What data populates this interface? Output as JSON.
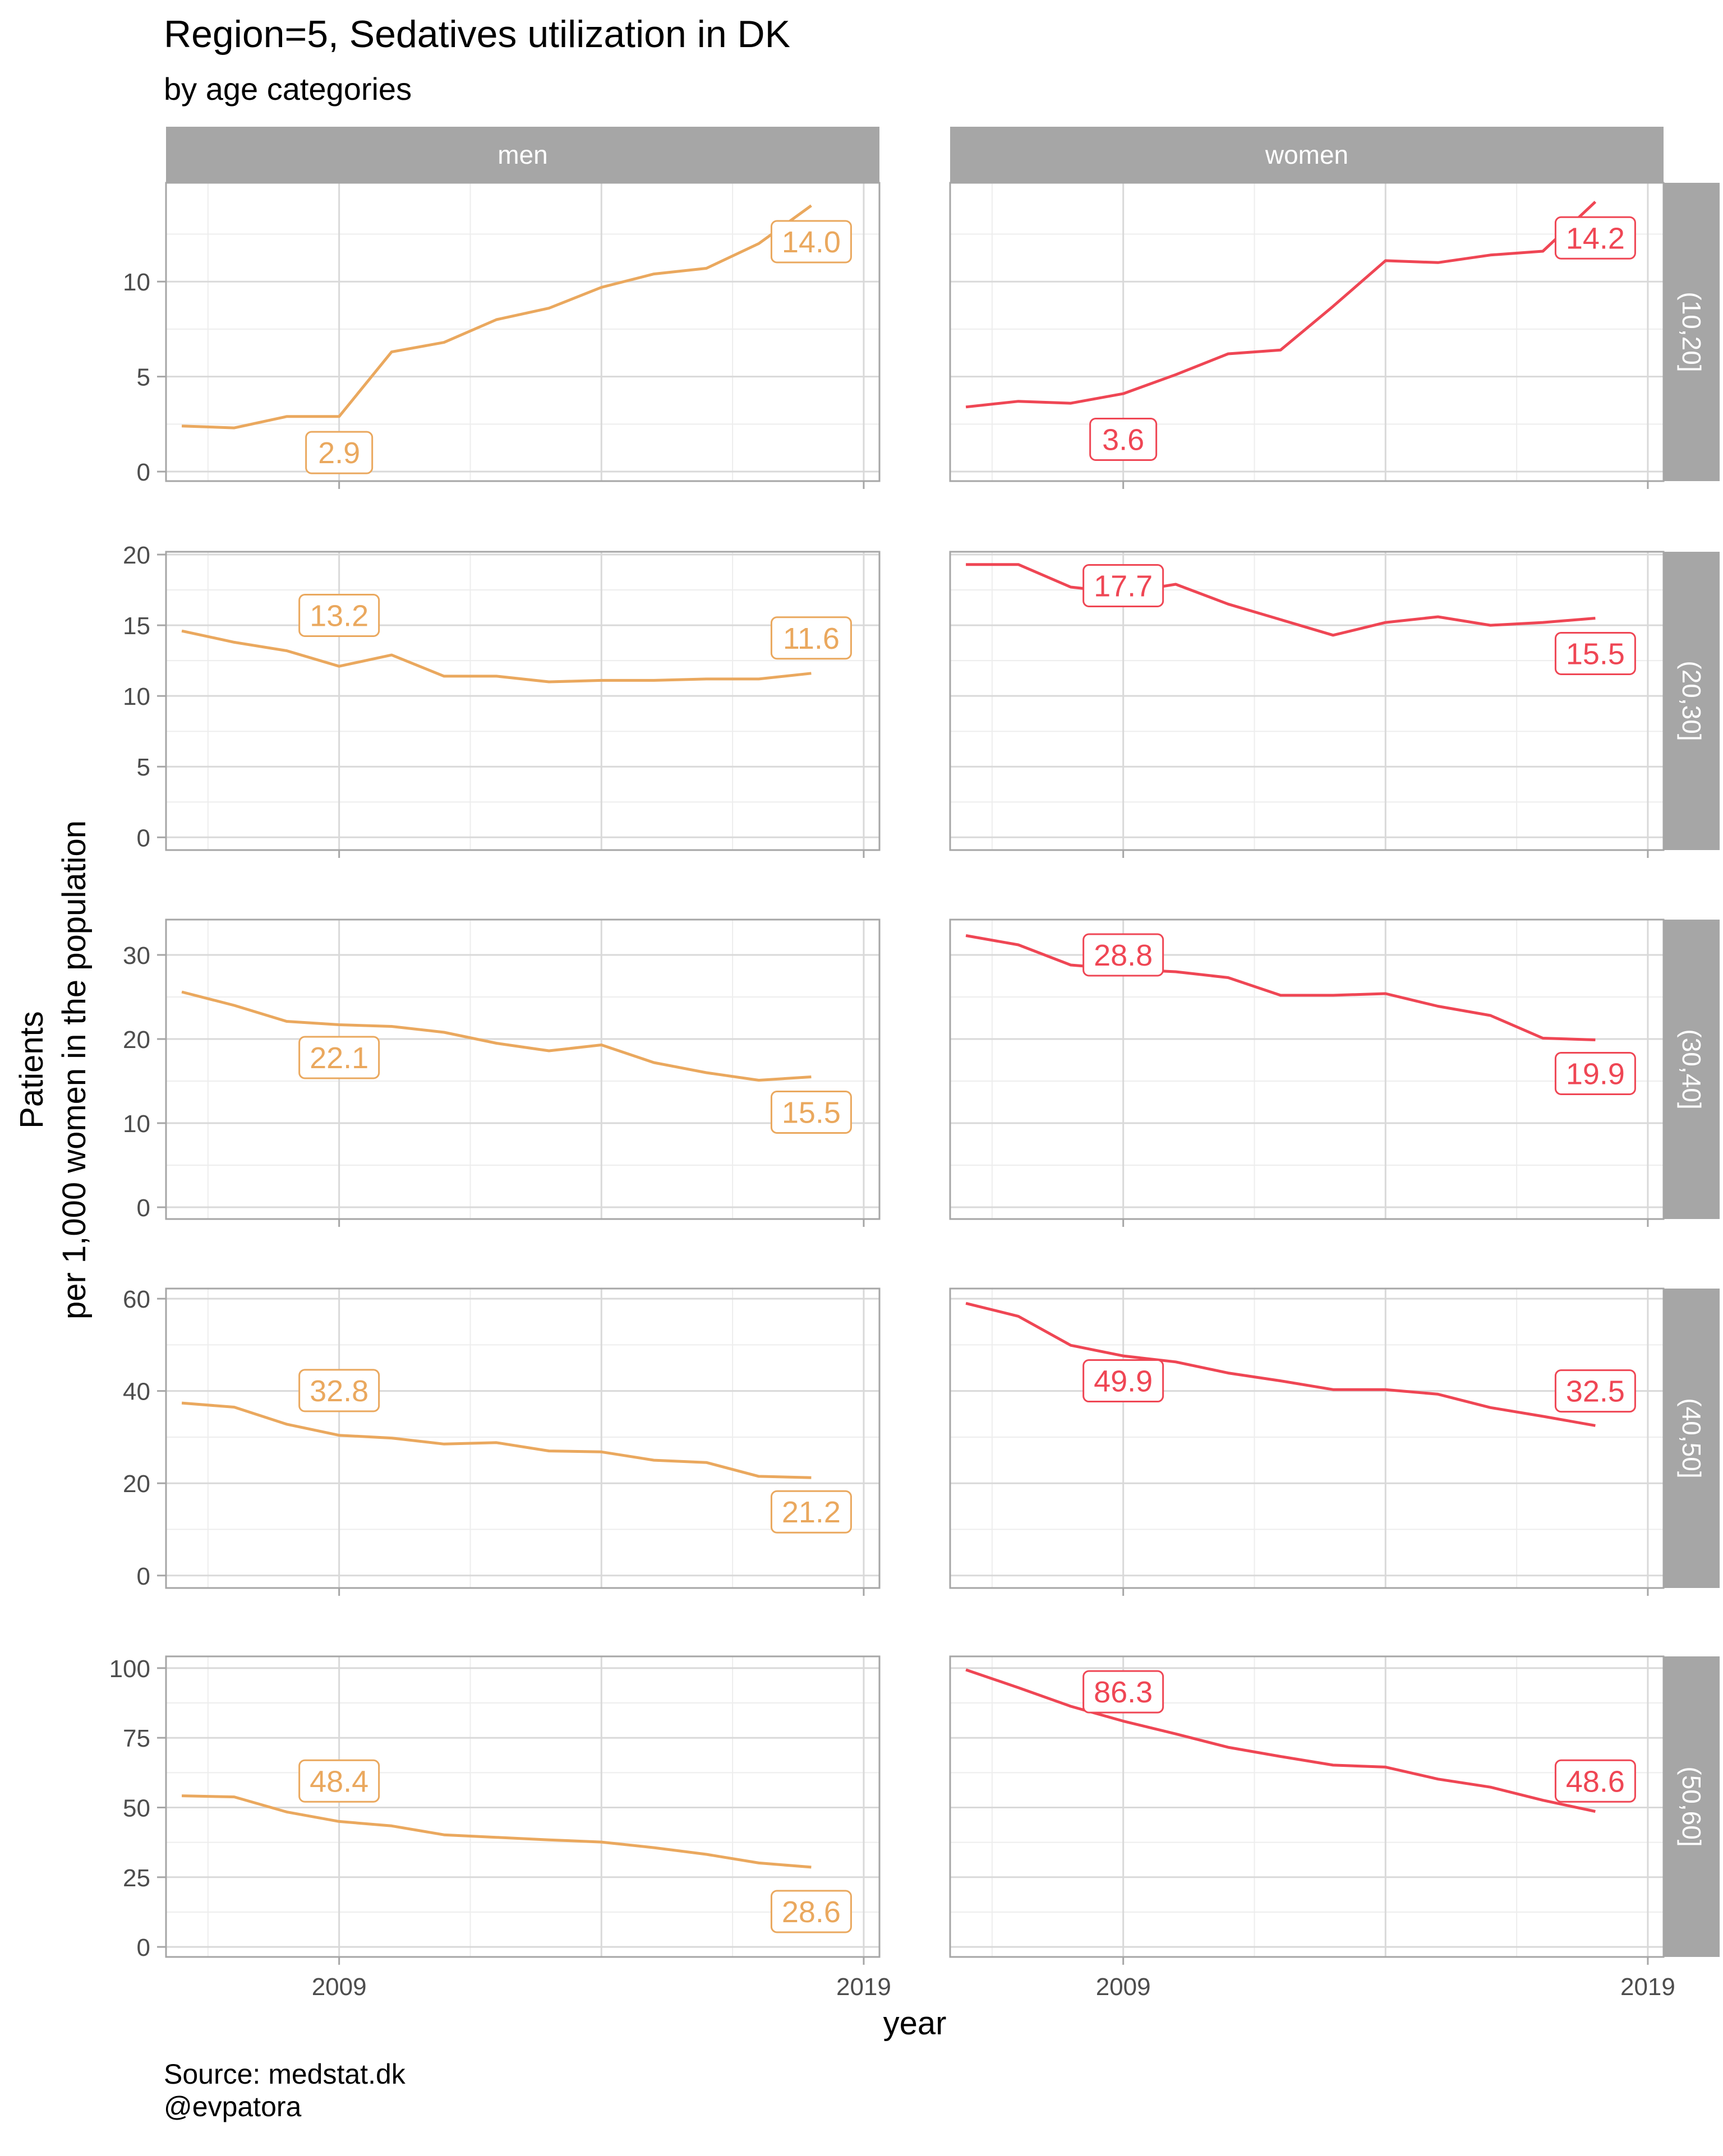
{
  "title": "Region=5, Sedatives utilization in DK",
  "subtitle": "by age categories",
  "caption_lines": [
    "Source: medstat.dk",
    "@evpatora"
  ],
  "colors": {
    "men": "#EAA85E",
    "women": "#EF4654",
    "strip_bg": "#A6A6A6",
    "strip_text": "#FFFFFF",
    "grid_major": "#D9D9D9",
    "grid_minor": "#EDEDED",
    "panel_border": "#A6A6A6",
    "text": "#000000",
    "tick_text": "#4D4D4D"
  },
  "chart_data": {
    "type": "line",
    "title": "Region=5, Sedatives utilization in DK",
    "subtitle": "by age categories",
    "xlabel": "year",
    "ylabel_lines": [
      "Patients",
      "per 1,000 women in the population"
    ],
    "x": [
      2006,
      2007,
      2008,
      2009,
      2010,
      2011,
      2012,
      2013,
      2014,
      2015,
      2016,
      2017,
      2018,
      2019
    ],
    "xlim": [
      2005.7,
      2019.3
    ],
    "x_ticks": [
      2009,
      2019
    ],
    "x_tick_labels": [
      "2009",
      "2019"
    ],
    "columns": [
      "men",
      "women"
    ],
    "rows": [
      "(10,20]",
      "(20,30]",
      "(30,40]",
      "(40,50]",
      "(50,60]"
    ],
    "grid": true,
    "legend": "none",
    "panels": [
      {
        "row_label": "(10,20]",
        "ylim": [
          -0.5,
          15.2
        ],
        "y_ticks": [
          0,
          5,
          10
        ],
        "y_tick_labels": [
          "0",
          "5",
          "10"
        ],
        "series": [
          {
            "name": "men",
            "values": [
              2.4,
              2.3,
              2.9,
              2.9,
              6.3,
              6.8,
              8.0,
              8.6,
              9.7,
              10.4,
              10.7,
              12.0,
              14.0,
              null
            ],
            "labels": [
              {
                "x": 2009,
                "y": 1.0,
                "text": "2.9"
              },
              {
                "x": 2018,
                "y": 12.1,
                "text": "14.0"
              }
            ]
          },
          {
            "name": "women",
            "values": [
              3.4,
              3.7,
              3.6,
              4.1,
              5.1,
              6.2,
              6.4,
              8.7,
              11.1,
              11.0,
              11.4,
              11.6,
              14.2,
              null
            ],
            "labels": [
              {
                "x": 2009,
                "y": 1.7,
                "text": "3.6"
              },
              {
                "x": 2018,
                "y": 12.3,
                "text": "14.2"
              }
            ]
          }
        ]
      },
      {
        "row_label": "(20,30]",
        "ylim": [
          -0.9,
          20.2
        ],
        "y_ticks": [
          0,
          5,
          10,
          15,
          20
        ],
        "y_tick_labels": [
          "0",
          "5",
          "10",
          "15",
          "20"
        ],
        "series": [
          {
            "name": "men",
            "values": [
              14.6,
              13.8,
              13.2,
              12.1,
              12.9,
              11.4,
              11.4,
              11.0,
              11.1,
              11.1,
              11.2,
              11.2,
              11.6,
              null
            ],
            "labels": [
              {
                "x": 2009,
                "y": 15.7,
                "text": "13.2"
              },
              {
                "x": 2018,
                "y": 14.1,
                "text": "11.6"
              }
            ]
          },
          {
            "name": "women",
            "values": [
              19.3,
              19.3,
              17.7,
              17.3,
              17.9,
              16.5,
              15.4,
              14.3,
              15.2,
              15.6,
              15.0,
              15.2,
              15.5,
              null
            ],
            "labels": [
              {
                "x": 2009,
                "y": 17.8,
                "text": "17.7"
              },
              {
                "x": 2018,
                "y": 13.0,
                "text": "15.5"
              }
            ]
          }
        ]
      },
      {
        "row_label": "(30,40]",
        "ylim": [
          -1.4,
          34.2
        ],
        "y_ticks": [
          0,
          10,
          20,
          30
        ],
        "y_tick_labels": [
          "0",
          "10",
          "20",
          "30"
        ],
        "series": [
          {
            "name": "men",
            "values": [
              25.6,
              24.0,
              22.1,
              21.7,
              21.5,
              20.8,
              19.5,
              18.6,
              19.3,
              17.2,
              16.0,
              15.1,
              15.5,
              null
            ],
            "labels": [
              {
                "x": 2009,
                "y": 17.8,
                "text": "22.1"
              },
              {
                "x": 2018,
                "y": 11.3,
                "text": "15.5"
              }
            ]
          },
          {
            "name": "women",
            "values": [
              32.3,
              31.2,
              28.8,
              28.3,
              28.0,
              27.3,
              25.2,
              25.2,
              25.4,
              23.9,
              22.8,
              20.1,
              19.9,
              null
            ],
            "labels": [
              {
                "x": 2009,
                "y": 30.0,
                "text": "28.8"
              },
              {
                "x": 2018,
                "y": 15.9,
                "text": "19.9"
              }
            ]
          }
        ]
      },
      {
        "row_label": "(40,50]",
        "ylim": [
          -2.7,
          62.2
        ],
        "y_ticks": [
          0,
          20,
          40,
          60
        ],
        "y_tick_labels": [
          "0",
          "20",
          "40",
          "60"
        ],
        "series": [
          {
            "name": "men",
            "values": [
              37.4,
              36.5,
              32.8,
              30.4,
              29.8,
              28.5,
              28.8,
              27.0,
              26.8,
              25.0,
              24.5,
              21.5,
              21.2,
              null
            ],
            "labels": [
              {
                "x": 2009,
                "y": 40.1,
                "text": "32.8"
              },
              {
                "x": 2018,
                "y": 13.8,
                "text": "21.2"
              }
            ]
          },
          {
            "name": "women",
            "values": [
              59.0,
              56.2,
              49.9,
              47.6,
              46.3,
              43.9,
              42.2,
              40.3,
              40.3,
              39.3,
              36.4,
              34.5,
              32.5,
              null
            ],
            "labels": [
              {
                "x": 2009,
                "y": 42.2,
                "text": "49.9"
              },
              {
                "x": 2018,
                "y": 40.0,
                "text": "32.5"
              }
            ]
          }
        ]
      },
      {
        "row_label": "(50,60]",
        "ylim": [
          -3.6,
          104.2
        ],
        "y_ticks": [
          0,
          25,
          50,
          75,
          100
        ],
        "y_tick_labels": [
          "0",
          "25",
          "50",
          "75",
          "100"
        ],
        "series": [
          {
            "name": "men",
            "values": [
              54.2,
              53.8,
              48.4,
              45.0,
              43.4,
              40.2,
              39.3,
              38.4,
              37.6,
              35.6,
              33.2,
              30.1,
              28.6,
              null
            ],
            "labels": [
              {
                "x": 2009,
                "y": 59.5,
                "text": "48.4"
              },
              {
                "x": 2018,
                "y": 12.7,
                "text": "28.6"
              }
            ]
          },
          {
            "name": "women",
            "values": [
              99.4,
              93.0,
              86.3,
              81.0,
              76.4,
              71.6,
              68.3,
              65.2,
              64.5,
              60.2,
              57.3,
              52.6,
              48.6,
              null
            ],
            "labels": [
              {
                "x": 2009,
                "y": 91.5,
                "text": "86.3"
              },
              {
                "x": 2018,
                "y": 59.5,
                "text": "48.6"
              }
            ]
          }
        ]
      }
    ]
  }
}
